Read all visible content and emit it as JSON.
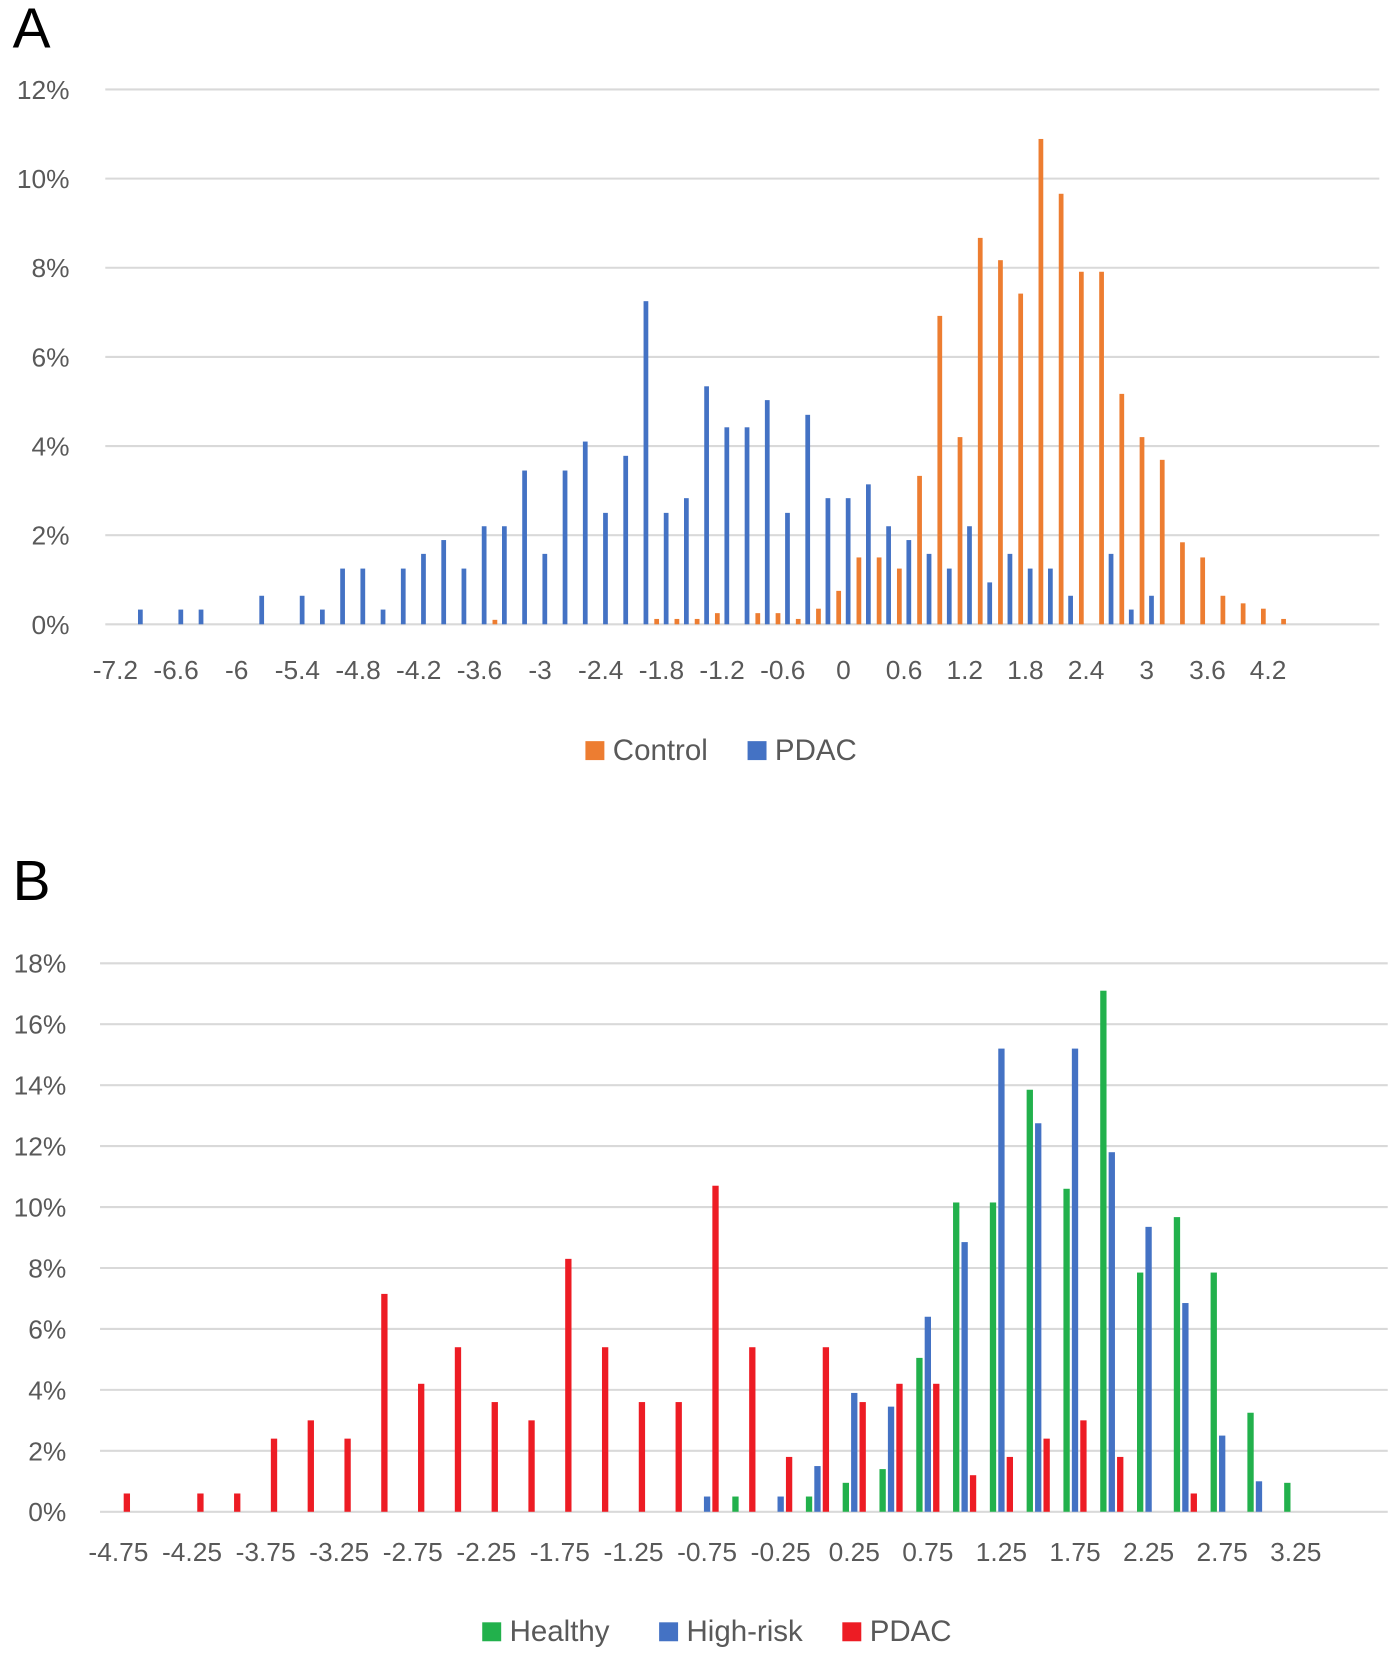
{
  "chart_data": [
    {
      "type": "bar",
      "panel_label": "A",
      "x_start": -7.2,
      "x_step": 0.2,
      "x_end": 5.2,
      "xticks": [
        "-7.2",
        "-6.6",
        "-6",
        "-5.4",
        "-4.8",
        "-4.2",
        "-3.6",
        "-3",
        "-2.4",
        "-1.8",
        "-1.2",
        "-0.6",
        "0",
        "0.6",
        "1.2",
        "1.8",
        "2.4",
        "3",
        "3.6",
        "4.2"
      ],
      "xtick_values": [
        -7.2,
        -6.6,
        -6,
        -5.4,
        -4.8,
        -4.2,
        -3.6,
        -3,
        -2.4,
        -1.8,
        -1.2,
        -0.6,
        0,
        0.6,
        1.2,
        1.8,
        2.4,
        3,
        3.6,
        4.2
      ],
      "ylim": [
        0,
        12
      ],
      "yticks": [
        "0%",
        "2%",
        "4%",
        "6%",
        "8%",
        "10%",
        "12%"
      ],
      "ytick_values": [
        0,
        2,
        4,
        6,
        8,
        10,
        12
      ],
      "grid": true,
      "legend": "bottom",
      "series": [
        {
          "name": "Control",
          "color": "#ED7D31",
          "points": [
            [
              -3.4,
              0.1
            ],
            [
              -1.8,
              0.12
            ],
            [
              -1.6,
              0.12
            ],
            [
              -1.4,
              0.12
            ],
            [
              -1.2,
              0.25
            ],
            [
              -0.8,
              0.25
            ],
            [
              -0.6,
              0.25
            ],
            [
              -0.4,
              0.12
            ],
            [
              -0.2,
              0.35
            ],
            [
              0,
              0.75
            ],
            [
              0.2,
              1.5
            ],
            [
              0.4,
              1.5
            ],
            [
              0.6,
              1.25
            ],
            [
              0.8,
              3.33
            ],
            [
              1.0,
              6.92
            ],
            [
              1.2,
              4.2
            ],
            [
              1.4,
              8.67
            ],
            [
              1.6,
              8.17
            ],
            [
              1.8,
              7.42
            ],
            [
              2.0,
              10.89
            ],
            [
              2.2,
              9.66
            ],
            [
              2.4,
              7.91
            ],
            [
              2.6,
              7.91
            ],
            [
              2.8,
              5.17
            ],
            [
              3.0,
              4.2
            ],
            [
              3.2,
              3.69
            ],
            [
              3.4,
              1.84
            ],
            [
              3.6,
              1.5
            ],
            [
              3.8,
              0.64
            ],
            [
              4.0,
              0.47
            ],
            [
              4.2,
              0.35
            ],
            [
              4.4,
              0.12
            ]
          ]
        },
        {
          "name": "PDAC",
          "color": "#4472C4",
          "points": [
            [
              -7.0,
              0.33
            ],
            [
              -6.6,
              0.33
            ],
            [
              -6.4,
              0.33
            ],
            [
              -5.8,
              0.64
            ],
            [
              -5.4,
              0.64
            ],
            [
              -5.2,
              0.33
            ],
            [
              -5.0,
              1.25
            ],
            [
              -4.8,
              1.25
            ],
            [
              -4.6,
              0.33
            ],
            [
              -4.4,
              1.25
            ],
            [
              -4.2,
              1.58
            ],
            [
              -4.0,
              1.89
            ],
            [
              -3.8,
              1.25
            ],
            [
              -3.6,
              2.2
            ],
            [
              -3.4,
              2.2
            ],
            [
              -3.2,
              3.45
            ],
            [
              -3.0,
              1.58
            ],
            [
              -2.8,
              3.45
            ],
            [
              -2.6,
              4.1
            ],
            [
              -2.4,
              2.5
            ],
            [
              -2.2,
              3.78
            ],
            [
              -2.0,
              7.25
            ],
            [
              -1.8,
              2.5
            ],
            [
              -1.6,
              2.83
            ],
            [
              -1.4,
              5.34
            ],
            [
              -1.2,
              4.42
            ],
            [
              -1.0,
              4.42
            ],
            [
              -0.8,
              5.03
            ],
            [
              -0.6,
              2.5
            ],
            [
              -0.4,
              4.7
            ],
            [
              -0.2,
              2.83
            ],
            [
              0,
              2.83
            ],
            [
              0.2,
              3.14
            ],
            [
              0.4,
              2.2
            ],
            [
              0.6,
              1.89
            ],
            [
              0.8,
              1.58
            ],
            [
              1.0,
              1.25
            ],
            [
              1.2,
              2.2
            ],
            [
              1.4,
              0.94
            ],
            [
              1.6,
              1.58
            ],
            [
              1.8,
              1.25
            ],
            [
              2.0,
              1.25
            ],
            [
              2.2,
              0.64
            ],
            [
              2.6,
              1.58
            ],
            [
              2.8,
              0.33
            ],
            [
              3.0,
              0.64
            ]
          ]
        }
      ]
    },
    {
      "type": "bar",
      "panel_label": "B",
      "x_start": -4.75,
      "x_step": 0.25,
      "x_end": 3.75,
      "xticks": [
        "-4.75",
        "-4.25",
        "-3.75",
        "-3.25",
        "-2.75",
        "-2.25",
        "-1.75",
        "-1.25",
        "-0.75",
        "-0.25",
        "0.25",
        "0.75",
        "1.25",
        "1.75",
        "2.25",
        "2.75",
        "3.25"
      ],
      "xtick_values": [
        -4.75,
        -4.25,
        -3.75,
        -3.25,
        -2.75,
        -2.25,
        -1.75,
        -1.25,
        -0.75,
        -0.25,
        0.25,
        0.75,
        1.25,
        1.75,
        2.25,
        2.75,
        3.25
      ],
      "ylim": [
        0,
        18
      ],
      "yticks": [
        "0%",
        "2%",
        "4%",
        "6%",
        "8%",
        "10%",
        "12%",
        "14%",
        "16%",
        "18%"
      ],
      "ytick_values": [
        0,
        2,
        4,
        6,
        8,
        10,
        12,
        14,
        16,
        18
      ],
      "grid": true,
      "legend": "bottom",
      "series": [
        {
          "name": "Healthy",
          "color": "#22B14C",
          "points": [
            [
              -0.5,
              0.5
            ],
            [
              0,
              0.5
            ],
            [
              0.25,
              0.95
            ],
            [
              0.5,
              1.4
            ],
            [
              0.75,
              5.05
            ],
            [
              1.0,
              10.15
            ],
            [
              1.25,
              10.15
            ],
            [
              1.5,
              13.85
            ],
            [
              1.75,
              10.6
            ],
            [
              2.0,
              17.1
            ],
            [
              2.25,
              7.85
            ],
            [
              2.5,
              9.67
            ],
            [
              2.75,
              7.85
            ],
            [
              3.0,
              3.25
            ],
            [
              3.25,
              0.95
            ]
          ]
        },
        {
          "name": "High-risk",
          "color": "#4472C4",
          "points": [
            [
              -0.75,
              0.5
            ],
            [
              -0.25,
              0.5
            ],
            [
              0,
              1.5
            ],
            [
              0.25,
              3.9
            ],
            [
              0.5,
              3.45
            ],
            [
              0.75,
              6.4
            ],
            [
              1.0,
              8.85
            ],
            [
              1.25,
              15.2
            ],
            [
              1.5,
              12.75
            ],
            [
              1.75,
              15.2
            ],
            [
              2.0,
              11.8
            ],
            [
              2.25,
              9.35
            ],
            [
              2.5,
              6.85
            ],
            [
              2.75,
              2.5
            ],
            [
              3.0,
              1.0
            ]
          ]
        },
        {
          "name": "PDAC",
          "color": "#ED1C24",
          "points": [
            [
              -4.75,
              0.6
            ],
            [
              -4.25,
              0.6
            ],
            [
              -4.0,
              0.6
            ],
            [
              -3.75,
              2.4
            ],
            [
              -3.5,
              3.0
            ],
            [
              -3.25,
              2.4
            ],
            [
              -3.0,
              7.15
            ],
            [
              -2.75,
              4.2
            ],
            [
              -2.5,
              5.4
            ],
            [
              -2.25,
              3.6
            ],
            [
              -2.0,
              3.0
            ],
            [
              -1.75,
              8.3
            ],
            [
              -1.5,
              5.4
            ],
            [
              -1.25,
              3.6
            ],
            [
              -1.0,
              3.6
            ],
            [
              -0.75,
              10.7
            ],
            [
              -0.5,
              5.4
            ],
            [
              -0.25,
              1.8
            ],
            [
              0,
              5.4
            ],
            [
              0.25,
              3.6
            ],
            [
              0.5,
              4.2
            ],
            [
              0.75,
              4.2
            ],
            [
              1.0,
              1.2
            ],
            [
              1.25,
              1.8
            ],
            [
              1.5,
              2.4
            ],
            [
              1.75,
              3.0
            ],
            [
              2.0,
              1.8
            ],
            [
              2.5,
              0.6
            ]
          ]
        }
      ]
    }
  ]
}
